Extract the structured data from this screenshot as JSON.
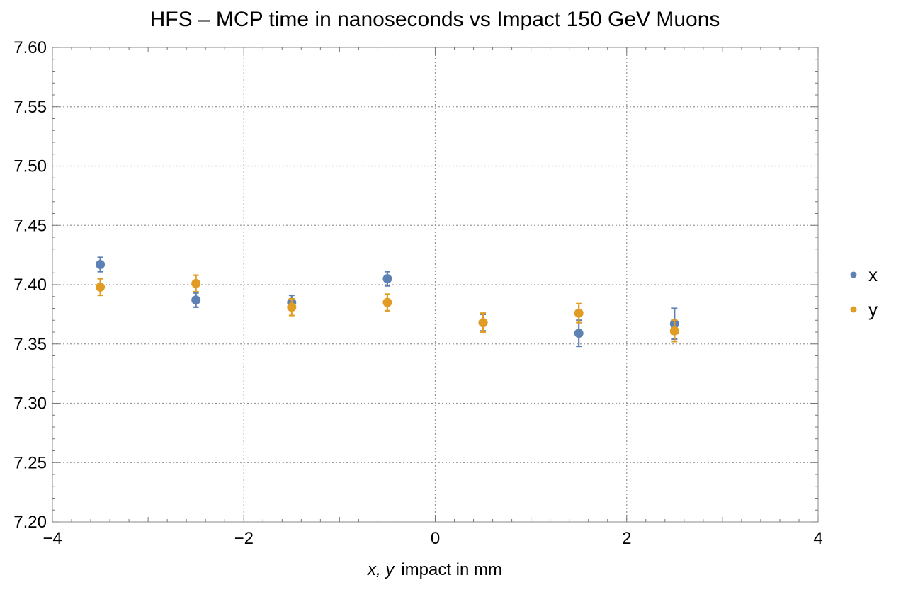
{
  "chart_data": {
    "type": "scatter",
    "title": "HFS – MCP time in nanoseconds vs Impact 150 GeV Muons",
    "xlabel_vars": "x, y",
    "xlabel_rest": "impact in mm",
    "ylabel": "",
    "xlim": [
      -4,
      4
    ],
    "ylim": [
      7.2,
      7.6
    ],
    "xticks": [
      -4,
      -2,
      0,
      2,
      4
    ],
    "xtick_labels": [
      "−4",
      "−2",
      "0",
      "2",
      "4"
    ],
    "yticks": [
      7.2,
      7.25,
      7.3,
      7.35,
      7.4,
      7.45,
      7.5,
      7.55,
      7.6
    ],
    "ytick_labels": [
      "7.20",
      "7.25",
      "7.30",
      "7.35",
      "7.40",
      "7.45",
      "7.50",
      "7.55",
      "7.60"
    ],
    "grid": true,
    "legend_position": "right",
    "series": [
      {
        "name": "x",
        "color": "#5e81b5",
        "points": [
          {
            "x": -3.5,
            "y": 7.417,
            "err": 0.006
          },
          {
            "x": -2.5,
            "y": 7.387,
            "err": 0.006
          },
          {
            "x": -1.5,
            "y": 7.385,
            "err": 0.006
          },
          {
            "x": -0.5,
            "y": 7.405,
            "err": 0.006
          },
          {
            "x": 0.5,
            "y": 7.368,
            "err": 0.007
          },
          {
            "x": 1.5,
            "y": 7.359,
            "err": 0.011
          },
          {
            "x": 2.5,
            "y": 7.367,
            "err": 0.013
          }
        ]
      },
      {
        "name": "y",
        "color": "#e19c24",
        "points": [
          {
            "x": -3.5,
            "y": 7.398,
            "err": 0.007
          },
          {
            "x": -2.5,
            "y": 7.401,
            "err": 0.007
          },
          {
            "x": -1.5,
            "y": 7.381,
            "err": 0.007
          },
          {
            "x": -0.5,
            "y": 7.385,
            "err": 0.007
          },
          {
            "x": 0.5,
            "y": 7.368,
            "err": 0.008
          },
          {
            "x": 1.5,
            "y": 7.376,
            "err": 0.008
          },
          {
            "x": 2.5,
            "y": 7.361,
            "err": 0.009
          }
        ]
      }
    ]
  }
}
